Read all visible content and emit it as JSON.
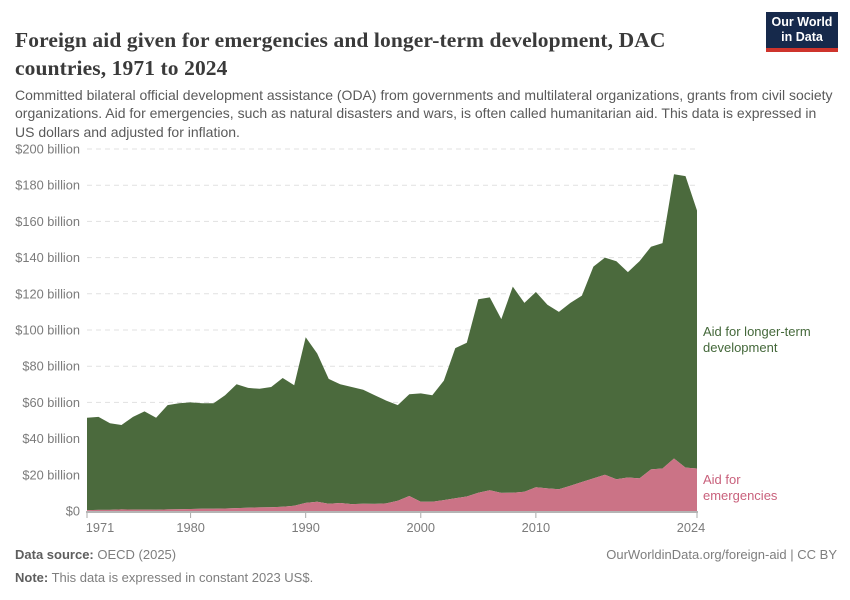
{
  "header": {
    "title": "Foreign aid given for emergencies and longer-term development, DAC countries, 1971 to 2024",
    "subtitle": "Committed bilateral official development assistance (ODA) from governments and multilateral organizations, grants from civil society organizations. Aid for emergencies, such as natural disasters and wars, is often called humanitarian aid. This data is expressed in US dollars and adjusted for inflation.",
    "logo": {
      "line1": "Our World",
      "line2": "in Data",
      "bg_color": "#16294B",
      "stripe_color": "#CE342C"
    }
  },
  "chart_data": {
    "type": "area",
    "stacked": true,
    "title": "Foreign aid given for emergencies and longer-term development, DAC countries, 1971 to 2024",
    "xlabel": "",
    "ylabel": "",
    "ylim": [
      0,
      200
    ],
    "ytick_step": 20,
    "grid": "horizontal dashed gridlines on",
    "legend_position": "inline labels right of plot",
    "x": [
      1971,
      1972,
      1973,
      1974,
      1975,
      1976,
      1977,
      1978,
      1979,
      1980,
      1981,
      1982,
      1983,
      1984,
      1985,
      1986,
      1987,
      1988,
      1989,
      1990,
      1991,
      1992,
      1993,
      1994,
      1995,
      1996,
      1997,
      1998,
      1999,
      2000,
      2001,
      2002,
      2003,
      2004,
      2005,
      2006,
      2007,
      2008,
      2009,
      2010,
      2011,
      2012,
      2013,
      2014,
      2015,
      2016,
      2017,
      2018,
      2019,
      2020,
      2021,
      2022,
      2023,
      2024
    ],
    "xticks": [
      1971,
      1980,
      1990,
      2000,
      2010,
      2024
    ],
    "ytick_labels": [
      "$0",
      "$20 billion",
      "$40 billion",
      "$60 billion",
      "$80 billion",
      "$100 billion",
      "$120 billion",
      "$140 billion",
      "$160 billion",
      "$180 billion",
      "$200 billion"
    ],
    "unit": "US$ billion, constant 2023 US$",
    "series": [
      {
        "name": "Aid for emergencies",
        "color": "#CB7386",
        "label_color": "#C9617C",
        "values": [
          0.5,
          0.6,
          0.6,
          0.9,
          0.8,
          0.8,
          0.7,
          0.9,
          1.0,
          1.1,
          1.2,
          1.2,
          1.4,
          1.6,
          1.8,
          2.0,
          2.1,
          2.4,
          2.9,
          4.5,
          5.1,
          4.0,
          4.4,
          3.8,
          4.0,
          3.9,
          4.2,
          5.7,
          8.3,
          5.1,
          5.1,
          6.0,
          7.0,
          8.0,
          10.1,
          11.5,
          10.0,
          10.1,
          10.6,
          13.1,
          12.5,
          12.0,
          14.0,
          16.0,
          18.0,
          20.0,
          17.5,
          18.5,
          18.0,
          23.0,
          23.5,
          29.0,
          24.0,
          23.5
        ]
      },
      {
        "name": "Aid for longer-term development",
        "color": "#4B6A3D",
        "label_color": "#44683A",
        "values": [
          51.0,
          51.4,
          47.9,
          46.6,
          51.2,
          54.2,
          50.8,
          57.6,
          58.5,
          58.9,
          58.3,
          58.3,
          62.6,
          68.4,
          66.2,
          65.5,
          66.4,
          71.1,
          66.6,
          91.5,
          81.9,
          69.0,
          65.6,
          64.7,
          63.0,
          60.1,
          56.8,
          52.8,
          56.2,
          59.9,
          58.9,
          66.0,
          83.0,
          85.0,
          106.9,
          106.5,
          96.0,
          113.9,
          104.4,
          107.9,
          101.5,
          98.0,
          101.0,
          103.0,
          117.0,
          120.0,
          120.5,
          113.5,
          120.0,
          123.0,
          124.5,
          157.0,
          161.0,
          142.5
        ]
      }
    ]
  },
  "footer": {
    "source_label": "Data source:",
    "source_value": " OECD (2025)",
    "note_label": "Note:",
    "note_value": " This data is expressed in constant 2023 US$.",
    "link": "OurWorldinData.org/foreign-aid | CC BY"
  }
}
